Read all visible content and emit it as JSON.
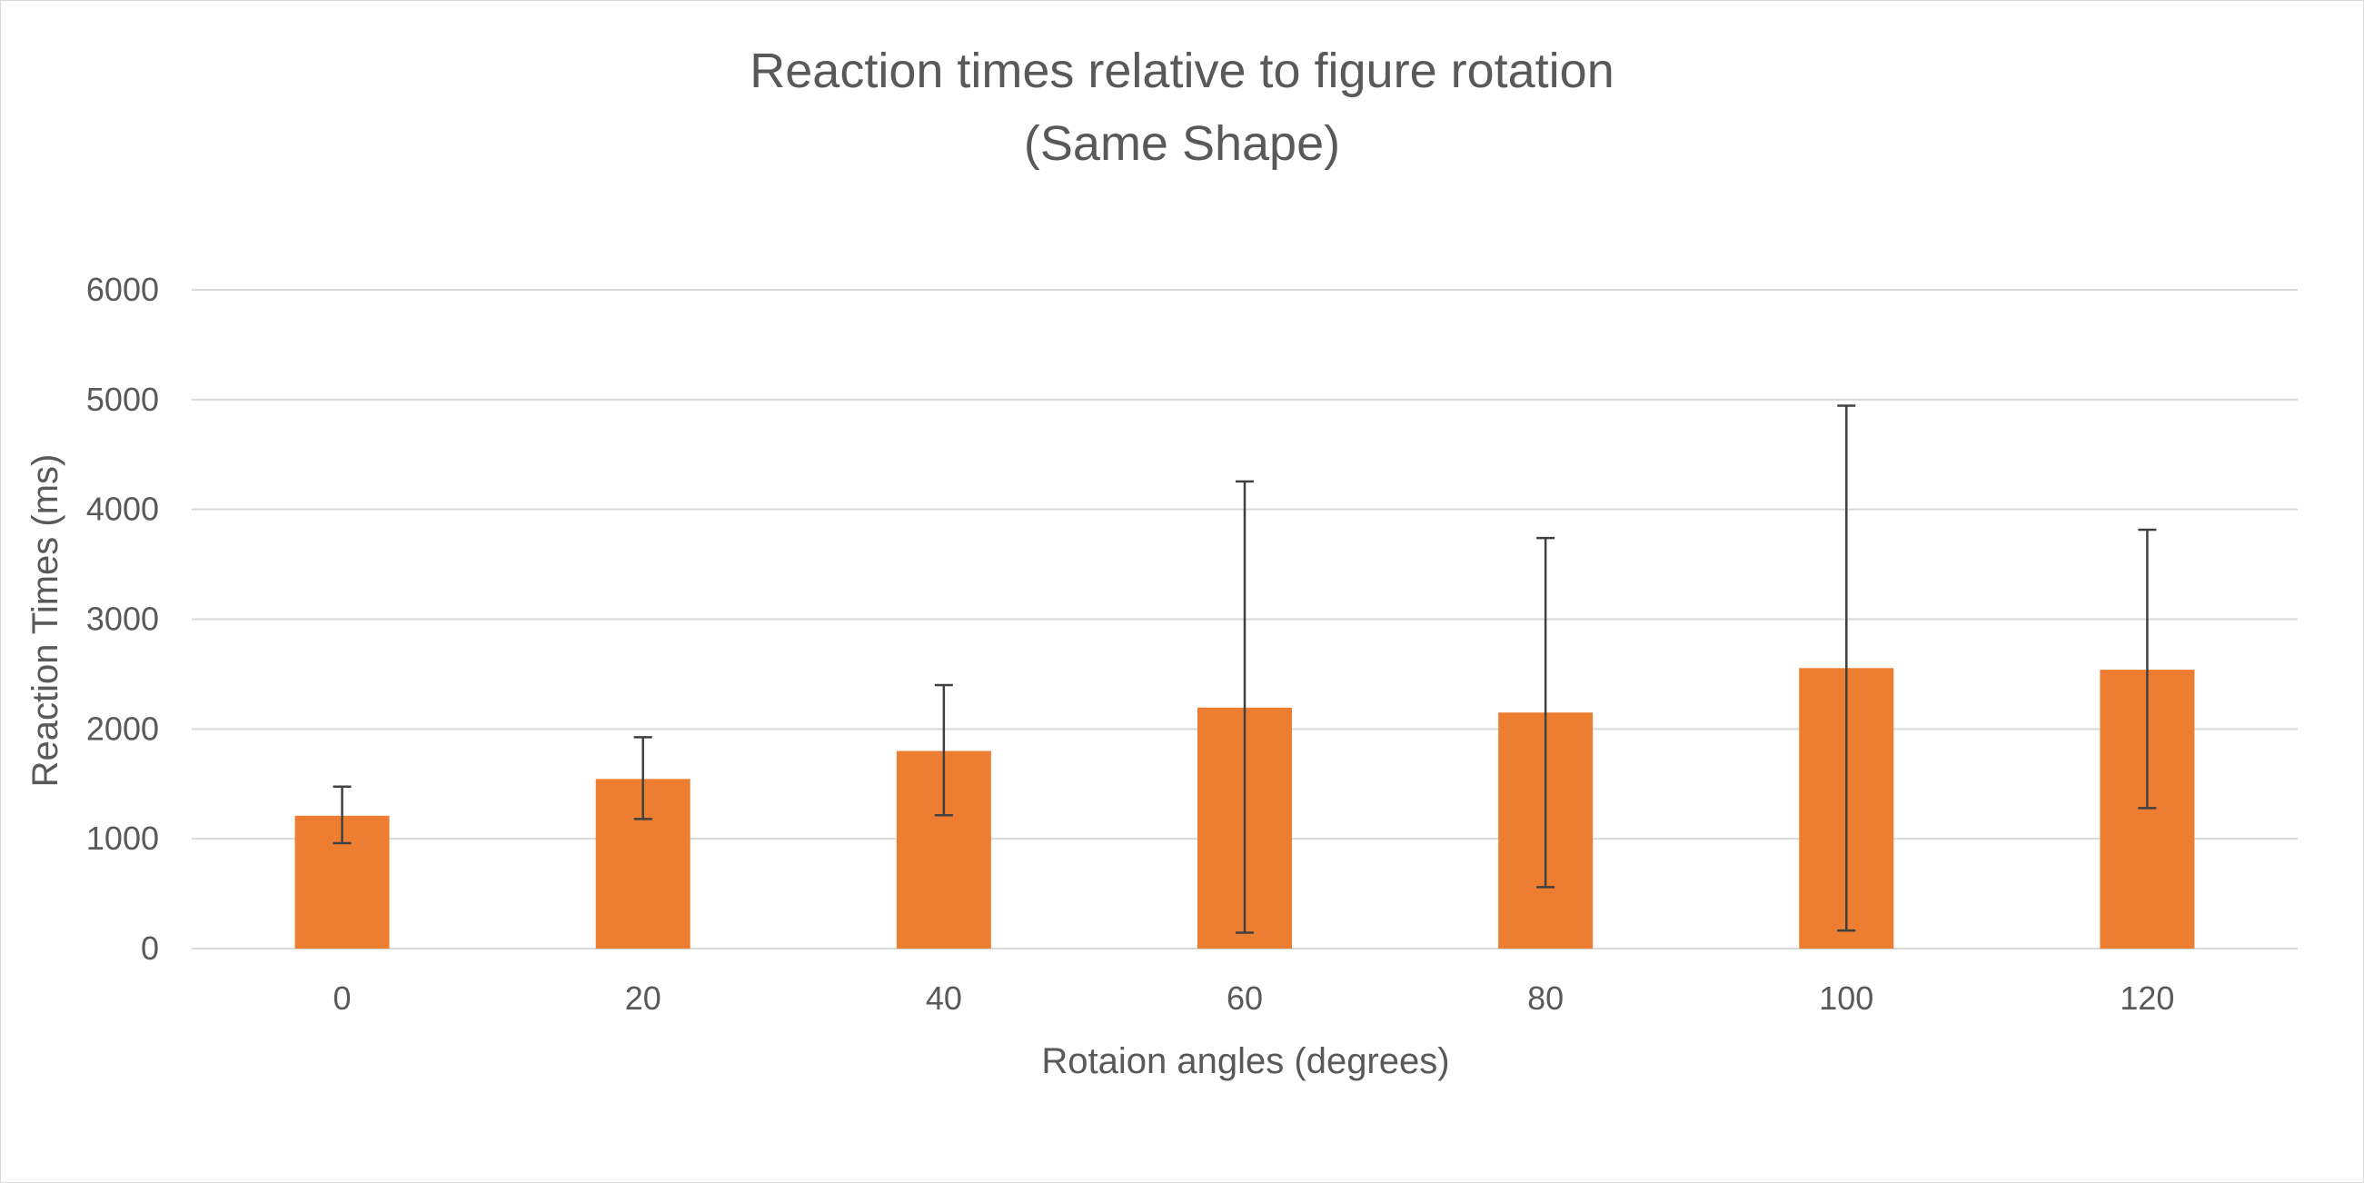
{
  "chart_data": {
    "type": "bar",
    "title": "Reaction times relative to figure rotation",
    "subtitle": "(Same Shape)",
    "xlabel": "Rotaion angles (degrees)",
    "ylabel": "Reaction Times (ms)",
    "categories": [
      "0",
      "20",
      "40",
      "60",
      "80",
      "100",
      "120"
    ],
    "values": [
      1210,
      1545,
      1800,
      2195,
      2150,
      2555,
      2540
    ],
    "error_low": [
      960,
      1180,
      1215,
      145,
      560,
      165,
      1280
    ],
    "error_high": [
      1475,
      1925,
      2400,
      4255,
      3740,
      4945,
      3815
    ],
    "ylim": [
      0,
      6000
    ],
    "yticks": [
      "0",
      "1000",
      "2000",
      "3000",
      "4000",
      "5000",
      "6000"
    ],
    "grid": true,
    "legend": "none",
    "colors": {
      "bar": "#ED7D31",
      "error_bar": "#404040",
      "gridline": "#d9d9d9",
      "text": "#595959"
    }
  }
}
